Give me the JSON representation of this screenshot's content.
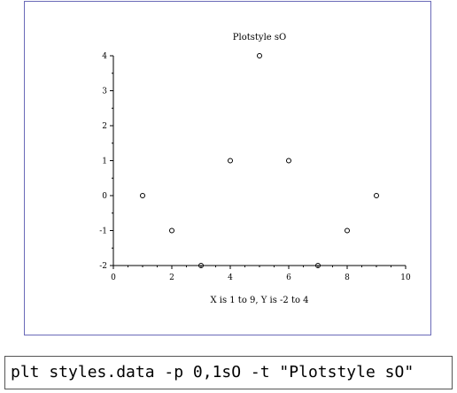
{
  "command": "plt styles.data -p 0,1sO -t \"Plotstyle sO\"",
  "chart_data": {
    "type": "scatter",
    "title": "Plotstyle sO",
    "xlabel": "X is 1 to 9,  Y is -2 to 4",
    "ylabel": "",
    "xlim": [
      0,
      10
    ],
    "ylim": [
      -2,
      4
    ],
    "x_ticks": [
      0,
      2,
      4,
      6,
      8,
      10
    ],
    "y_ticks": [
      -2,
      -1,
      0,
      1,
      2,
      3,
      4
    ],
    "marker": "circle",
    "grid": false,
    "series": [
      {
        "x": [
          1,
          2,
          3,
          4,
          5,
          6,
          7,
          8,
          9
        ],
        "y": [
          0,
          -1,
          -2,
          1,
          4,
          1,
          -2,
          -1,
          0
        ]
      }
    ]
  }
}
